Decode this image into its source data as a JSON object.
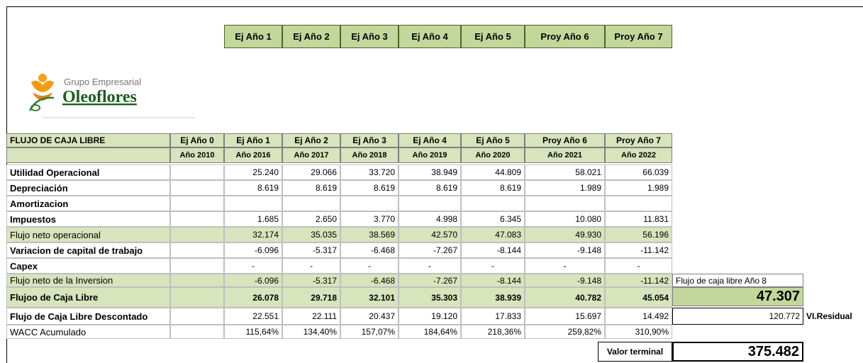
{
  "top_header": [
    "Ej Año 1",
    "Ej Año 2",
    "Ej Año 3",
    "Ej Año 4",
    "Ej Año 5",
    "Proy Año 6",
    "Proy Año 7"
  ],
  "logo": {
    "line1": "Grupo Empresarial",
    "line2": "Oleoflores"
  },
  "table": {
    "title": "FLUJO DE CAJA LIBRE",
    "periods": [
      "Ej Año 0",
      "Ej Año 1",
      "Ej Año 2",
      "Ej Año 3",
      "Ej Año 4",
      "Ej Año 5",
      "Proy Año 6",
      "Proy Año 7"
    ],
    "years": [
      "Año 2010",
      "Año 2016",
      "Año 2017",
      "Año 2018",
      "Año 2019",
      "Año 2020",
      "Año 2021",
      "Año 2022"
    ],
    "rows": [
      {
        "label": "Utilidad Operacional",
        "values": [
          null,
          "25.240",
          "29.066",
          "33.720",
          "38.949",
          "44.809",
          "58.021",
          "66.039"
        ]
      },
      {
        "label": "Depreciación",
        "values": [
          null,
          "8.619",
          "8.619",
          "8.619",
          "8.619",
          "8.619",
          "1.989",
          "1.989"
        ]
      },
      {
        "label": "Amortizacion",
        "values": [
          null,
          null,
          null,
          null,
          null,
          null,
          null,
          null
        ]
      },
      {
        "label": "Impuestos",
        "values": [
          null,
          "1.685",
          "2.650",
          "3.770",
          "4.998",
          "6.345",
          "10.080",
          "11.831"
        ]
      },
      {
        "label": "Flujo neto operacional",
        "values": [
          null,
          "32.174",
          "35.035",
          "38.569",
          "42.570",
          "47.083",
          "49.930",
          "56.196"
        ]
      },
      {
        "label": "Variacion de capital de trabajo",
        "values": [
          null,
          "-6.096",
          "-5.317",
          "-6.468",
          "-7.267",
          "-8.144",
          "-9.148",
          "-11.142"
        ]
      },
      {
        "label": "Capex",
        "values": [
          null,
          "-",
          "-",
          "-",
          "-",
          "-",
          "-",
          "-"
        ]
      },
      {
        "label": "Flujo neto de la Inversion",
        "values": [
          null,
          "-6.096",
          "-5.317",
          "-6.468",
          "-7.267",
          "-8.144",
          "-9.148",
          "-11.142"
        ]
      },
      {
        "label": "Flujoo de Caja Libre",
        "values": [
          null,
          "26.078",
          "29.718",
          "32.101",
          "35.303",
          "38.939",
          "40.782",
          "45.054"
        ]
      },
      {
        "label": "Flujo de Caja Libre Descontado",
        "values": [
          null,
          "22.551",
          "22.111",
          "20.437",
          "19.120",
          "17.833",
          "15.697",
          "14.492"
        ]
      },
      {
        "label": "WACC Acumulado",
        "values": [
          null,
          "115,64%",
          "134,40%",
          "157,07%",
          "184,64%",
          "218,36%",
          "259,82%",
          "310,90%"
        ]
      }
    ]
  },
  "side": {
    "fcl_label": "Flujo de caja libre Año  8",
    "fcl_value": "47.307",
    "residual_value": "120.772",
    "residual_label": "VI.Residual",
    "terminal_label": "Valor terminal",
    "terminal_value": "375.482"
  }
}
